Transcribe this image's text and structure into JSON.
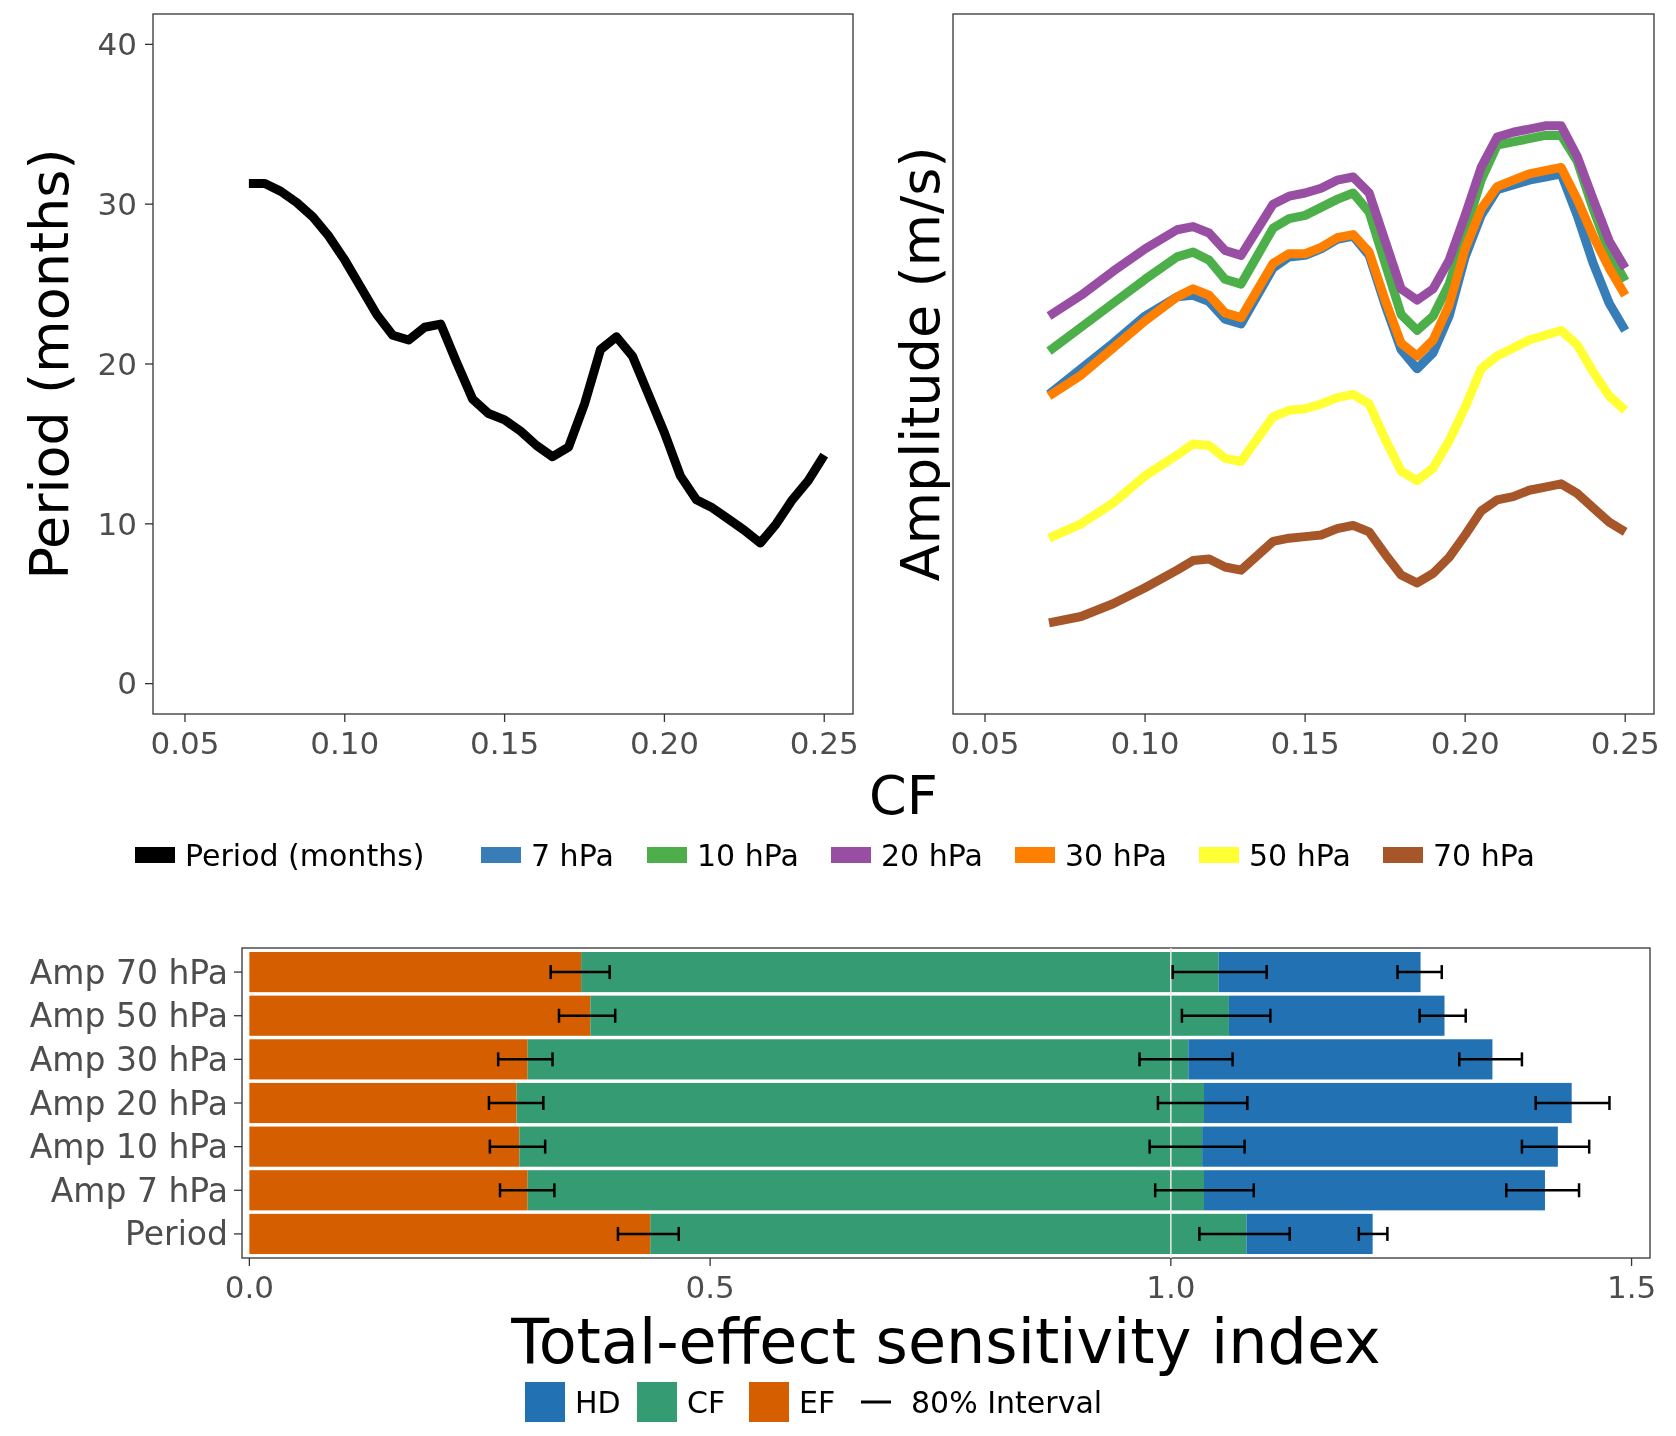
{
  "chart_data": [
    {
      "type": "line",
      "xlabel": "CF",
      "ylabel": "Period (months)",
      "legend": "bottom",
      "x": [
        0.07,
        0.075,
        0.08,
        0.085,
        0.09,
        0.095,
        0.1,
        0.105,
        0.11,
        0.115,
        0.12,
        0.125,
        0.13,
        0.135,
        0.14,
        0.145,
        0.15,
        0.155,
        0.16,
        0.165,
        0.17,
        0.175,
        0.18,
        0.185,
        0.19,
        0.195,
        0.2,
        0.205,
        0.21,
        0.215,
        0.22,
        0.225,
        0.23,
        0.235,
        0.24,
        0.245,
        0.25
      ],
      "series": [
        {
          "name": "Period (months)",
          "color": "#000000",
          "values": [
            31.3,
            31.3,
            30.8,
            30.1,
            29.2,
            28.0,
            26.5,
            24.8,
            23.1,
            21.8,
            21.5,
            22.3,
            22.5,
            20.1,
            17.8,
            16.9,
            16.5,
            15.8,
            14.9,
            14.2,
            14.8,
            17.5,
            20.9,
            21.7,
            20.5,
            18.1,
            15.7,
            13.0,
            11.5,
            11.0,
            10.3,
            9.6,
            8.8,
            10.0,
            11.5,
            12.7,
            14.3
          ]
        }
      ],
      "xlim": [
        0.04,
        0.259
      ],
      "ylim": [
        -1.9,
        41.9
      ],
      "xticks": [
        {
          "value": 0.05,
          "label": "0.05"
        },
        {
          "value": 0.1,
          "label": "0.10"
        },
        {
          "value": 0.15,
          "label": "0.15"
        },
        {
          "value": 0.2,
          "label": "0.20"
        },
        {
          "value": 0.25,
          "label": "0.25"
        }
      ],
      "yticks": [
        0,
        10,
        20,
        30,
        40
      ]
    },
    {
      "type": "line",
      "ylabel": "Amplitude (m/s)",
      "legend": "bottom",
      "tick_labels": "x",
      "x": [
        0.07,
        0.08,
        0.09,
        0.1,
        0.11,
        0.115,
        0.12,
        0.125,
        0.13,
        0.14,
        0.145,
        0.15,
        0.155,
        0.16,
        0.165,
        0.17,
        0.175,
        0.18,
        0.185,
        0.19,
        0.195,
        0.2,
        0.205,
        0.21,
        0.215,
        0.22,
        0.225,
        0.23,
        0.235,
        0.24,
        0.245,
        0.25
      ],
      "series": [
        {
          "name": "7 hPa",
          "color": "#377eb8",
          "values": [
            18.1,
            19.7,
            21.3,
            23.0,
            24.2,
            24.3,
            23.9,
            22.8,
            22.5,
            26.0,
            26.7,
            26.8,
            27.2,
            27.8,
            28.0,
            26.8,
            23.7,
            20.9,
            19.7,
            20.7,
            23.0,
            26.7,
            29.3,
            30.9,
            31.2,
            31.5,
            31.7,
            31.9,
            29.3,
            26.3,
            23.8,
            22.1
          ]
        },
        {
          "name": "10 hPa",
          "color": "#4daf4a",
          "values": [
            20.8,
            22.3,
            23.8,
            25.3,
            26.7,
            27.0,
            26.5,
            25.3,
            25.0,
            28.5,
            29.1,
            29.3,
            29.8,
            30.3,
            30.7,
            29.5,
            26.3,
            23.1,
            22.1,
            23.0,
            25.0,
            28.3,
            31.5,
            33.7,
            33.9,
            34.1,
            34.3,
            34.3,
            32.7,
            29.7,
            27.0,
            25.2
          ]
        },
        {
          "name": "20 hPa",
          "color": "#984ea3",
          "values": [
            23.0,
            24.3,
            25.8,
            27.2,
            28.4,
            28.6,
            28.2,
            27.1,
            26.8,
            30.0,
            30.5,
            30.7,
            31.0,
            31.5,
            31.7,
            30.7,
            27.7,
            24.7,
            24.0,
            24.7,
            26.5,
            29.3,
            32.3,
            34.2,
            34.5,
            34.7,
            34.9,
            34.9,
            33.0,
            30.3,
            27.7,
            26.0
          ]
        },
        {
          "name": "30 hPa",
          "color": "#ff7f00",
          "values": [
            18.0,
            19.3,
            21.0,
            22.7,
            24.2,
            24.7,
            24.3,
            23.2,
            22.9,
            26.3,
            26.9,
            26.9,
            27.3,
            27.9,
            28.1,
            27.0,
            24.0,
            21.3,
            20.5,
            21.5,
            23.7,
            27.2,
            29.7,
            31.1,
            31.5,
            31.9,
            32.1,
            32.3,
            30.3,
            28.0,
            26.0,
            24.3
          ]
        },
        {
          "name": "50 hPa",
          "color": "#ffff33",
          "values": [
            9.1,
            10.0,
            11.3,
            13.0,
            14.3,
            15.0,
            14.9,
            14.1,
            13.9,
            16.7,
            17.1,
            17.2,
            17.5,
            17.9,
            18.1,
            17.5,
            15.3,
            13.3,
            12.7,
            13.5,
            15.2,
            17.3,
            19.7,
            20.5,
            21.0,
            21.5,
            21.8,
            22.1,
            21.2,
            19.5,
            18.0,
            17.1
          ]
        },
        {
          "name": "70 hPa",
          "color": "#a65628",
          "values": [
            3.8,
            4.2,
            5.0,
            6.0,
            7.1,
            7.7,
            7.8,
            7.3,
            7.1,
            8.9,
            9.1,
            9.2,
            9.3,
            9.7,
            9.9,
            9.5,
            8.1,
            6.8,
            6.3,
            6.9,
            7.9,
            9.3,
            10.8,
            11.5,
            11.7,
            12.1,
            12.3,
            12.5,
            11.9,
            11.0,
            10.1,
            9.5
          ]
        }
      ],
      "xlim": [
        0.04,
        0.259
      ],
      "ylim": [
        -1.9,
        41.9
      ],
      "xticks": [
        {
          "value": 0.05,
          "label": "0.05"
        },
        {
          "value": 0.1,
          "label": "0.10"
        },
        {
          "value": 0.15,
          "label": "0.15"
        },
        {
          "value": 0.2,
          "label": "0.20"
        },
        {
          "value": 0.25,
          "label": "0.25"
        }
      ],
      "yticks": [
        0,
        10,
        20,
        30,
        40
      ]
    },
    {
      "type": "bar",
      "orientation": "horizontal",
      "stacked": true,
      "xlabel": "Total-effect sensitivity index",
      "legend": "bottom",
      "categories": [
        "Amp 70 hPa",
        "Amp 50 hPa",
        "Amp 30 hPa",
        "Amp 20 hPa",
        "Amp 10 hPa",
        "Amp 7 hPa",
        "Period"
      ],
      "series": [
        {
          "name": "EF",
          "color": "#d55e00",
          "values": [
            0.36,
            0.37,
            0.302,
            0.29,
            0.293,
            0.302,
            0.435
          ],
          "errors": [
            [
              0.327,
              0.391
            ],
            [
              0.336,
              0.397
            ],
            [
              0.27,
              0.329
            ],
            [
              0.26,
              0.319
            ],
            [
              0.261,
              0.321
            ],
            [
              0.272,
              0.331
            ],
            [
              0.4,
              0.466
            ]
          ]
        },
        {
          "name": "CF",
          "color": "#359b73",
          "values": [
            0.692,
            0.693,
            0.717,
            0.746,
            0.741,
            0.734,
            0.647
          ],
          "errors": [
            [
              1.002,
              1.104
            ],
            [
              1.012,
              1.108
            ],
            [
              0.966,
              1.067
            ],
            [
              0.986,
              1.083
            ],
            [
              0.977,
              1.08
            ],
            [
              0.983,
              1.09
            ],
            [
              1.031,
              1.129
            ]
          ]
        },
        {
          "name": "HD",
          "color": "#2271b2",
          "values": [
            0.219,
            0.234,
            0.33,
            0.399,
            0.386,
            0.37,
            0.137
          ],
          "errors": [
            [
              1.246,
              1.294
            ],
            [
              1.27,
              1.32
            ],
            [
              1.313,
              1.381
            ],
            [
              1.396,
              1.476
            ],
            [
              1.381,
              1.454
            ],
            [
              1.364,
              1.443
            ],
            [
              1.204,
              1.235
            ]
          ]
        }
      ],
      "xlim": [
        -0.008,
        1.52
      ],
      "xticks": [
        {
          "value": 0,
          "label": "0.0"
        },
        {
          "value": 0.5,
          "label": "0.5"
        },
        {
          "value": 1,
          "label": "1.0"
        },
        {
          "value": 1.5,
          "label": "1.5"
        }
      ],
      "ref_lines": [
        {
          "axis": "x",
          "value": 1,
          "color": "#ebebeb"
        }
      ],
      "annotations": [
        "80% Interval"
      ]
    }
  ]
}
